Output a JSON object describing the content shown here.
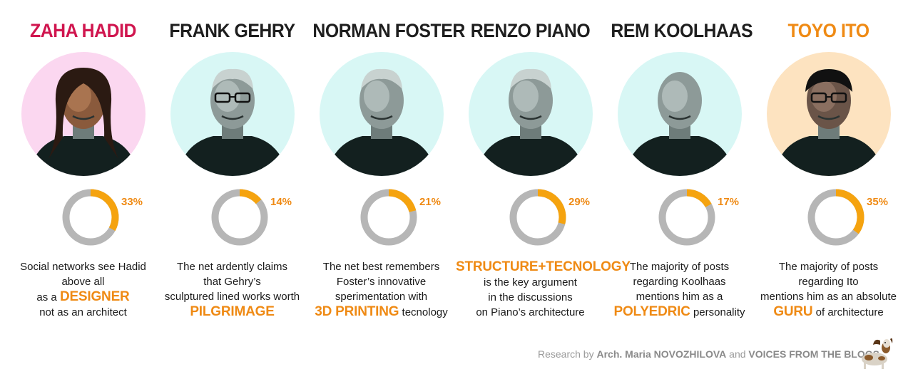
{
  "colors": {
    "highlight": "#ef8a14",
    "pink_name": "#d0164f",
    "dark_name": "#1e1e1e",
    "donut_track": "#b6b6b6",
    "donut_fill": "#f5a30f",
    "bg_pink": "#fbd7f0",
    "bg_cyan": "#d8f7f5",
    "bg_peach": "#fde3c0"
  },
  "chart_data": {
    "type": "pie",
    "categories": [
      "ZAHA HADID",
      "FRANK GEHRY",
      "NORMAN FOSTER",
      "RENZO PIANO",
      "REM KOOLHAAS",
      "TOYO ITO"
    ],
    "values": [
      33,
      14,
      21,
      29,
      17,
      35
    ],
    "value_labels": [
      "33%",
      "14%",
      "21%",
      "29%",
      "17%",
      "35%"
    ]
  },
  "architects": [
    {
      "name": "ZAHA HADID",
      "name_color": "#d0164f",
      "bg": "#fbd7f0",
      "portrait_icon": "architect-portrait-icon",
      "percent_label": "33%",
      "desc": [
        [
          {
            "t": "Social networks see Hadid"
          }
        ],
        [
          {
            "t": "above all"
          }
        ],
        [
          {
            "t": "as a "
          },
          {
            "t": "DESIGNER",
            "hl": true
          }
        ],
        [
          {
            "t": "not as an architect"
          }
        ]
      ]
    },
    {
      "name": "FRANK GEHRY",
      "name_color": "#1e1e1e",
      "bg": "#d8f7f5",
      "portrait_icon": "architect-portrait-icon",
      "percent_label": "14%",
      "desc": [
        [
          {
            "t": "The net ardently claims"
          }
        ],
        [
          {
            "t": "that Gehry’s"
          }
        ],
        [
          {
            "t": "sculptured lined works worth"
          }
        ],
        [
          {
            "t": "PILGRIMAGE",
            "hl": true
          }
        ]
      ]
    },
    {
      "name": "NORMAN FOSTER",
      "name_color": "#1e1e1e",
      "bg": "#d8f7f5",
      "portrait_icon": "architect-portrait-icon",
      "percent_label": "21%",
      "desc": [
        [
          {
            "t": "The net best remembers"
          }
        ],
        [
          {
            "t": "Foster’s innovative"
          }
        ],
        [
          {
            "t": "sperimentation with"
          }
        ],
        [
          {
            "t": "3D PRINTING",
            "hl": true
          },
          {
            "t": " tecnology"
          }
        ]
      ]
    },
    {
      "name": "RENZO PIANO",
      "name_color": "#1e1e1e",
      "bg": "#d8f7f5",
      "portrait_icon": "architect-portrait-icon",
      "percent_label": "29%",
      "desc": [
        [
          {
            "t": "STRUCTURE+TECNOLOGY",
            "hl": true
          }
        ],
        [
          {
            "t": "is the key argument"
          }
        ],
        [
          {
            "t": "in the discussions"
          }
        ],
        [
          {
            "t": "on Piano’s architecture"
          }
        ]
      ]
    },
    {
      "name": "REM KOOLHAAS",
      "name_color": "#1e1e1e",
      "bg": "#d8f7f5",
      "portrait_icon": "architect-portrait-icon",
      "percent_label": "17%",
      "desc": [
        [
          {
            "t": "The majority of posts"
          }
        ],
        [
          {
            "t": "regarding Koolhaas"
          }
        ],
        [
          {
            "t": "mentions him as a"
          }
        ],
        [
          {
            "t": "POLYEDRIC",
            "hl": true
          },
          {
            "t": " personality"
          }
        ]
      ]
    },
    {
      "name": "TOYO ITO",
      "name_color": "#ef8a14",
      "bg": "#fde3c0",
      "portrait_icon": "architect-portrait-icon",
      "percent_label": "35%",
      "desc": [
        [
          {
            "t": "The majority of posts"
          }
        ],
        [
          {
            "t": "regarding Ito"
          }
        ],
        [
          {
            "t": "mentions him as an absolute"
          }
        ],
        [
          {
            "t": "GURU",
            "hl": true
          },
          {
            "t": " of architecture"
          }
        ]
      ]
    }
  ],
  "footer": {
    "prefix": "Research by ",
    "author": "Arch. Maria NOVOZHILOVA",
    "middle": " and ",
    "org": "VOICES FROM THE BLOGS",
    "logo_icon": "basset-dog-logo-icon"
  }
}
